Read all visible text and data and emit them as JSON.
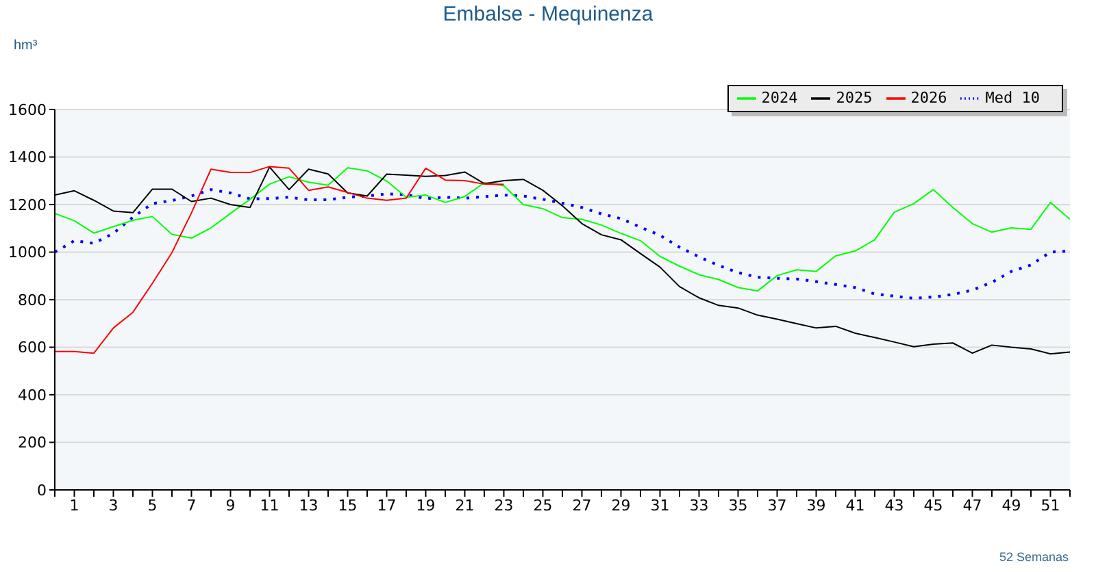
{
  "chart_data": {
    "type": "line",
    "title": "Embalse - Mequinenza",
    "ylabel": "hm³",
    "xlabel": "52 Semanas",
    "x": [
      0,
      1,
      2,
      3,
      4,
      5,
      6,
      7,
      8,
      9,
      10,
      11,
      12,
      13,
      14,
      15,
      16,
      17,
      18,
      19,
      20,
      21,
      22,
      23,
      24,
      25,
      26,
      27,
      28,
      29,
      30,
      31,
      32,
      33,
      34,
      35,
      36,
      37,
      38,
      39,
      40,
      41,
      42,
      43,
      44,
      45,
      46,
      47,
      48,
      49,
      50,
      51,
      52
    ],
    "xlim": [
      0,
      52
    ],
    "xticks": [
      {
        "value": 0,
        "label": null
      },
      1,
      {
        "value": 2,
        "label": null
      },
      3,
      {
        "value": 4,
        "label": null
      },
      5,
      {
        "value": 6,
        "label": null
      },
      7,
      {
        "value": 8,
        "label": null
      },
      9,
      {
        "value": 10,
        "label": null
      },
      11,
      {
        "value": 12,
        "label": null
      },
      13,
      {
        "value": 14,
        "label": null
      },
      15,
      {
        "value": 16,
        "label": null
      },
      17,
      {
        "value": 18,
        "label": null
      },
      19,
      {
        "value": 20,
        "label": null
      },
      21,
      {
        "value": 22,
        "label": null
      },
      23,
      {
        "value": 24,
        "label": null
      },
      25,
      {
        "value": 26,
        "label": null
      },
      27,
      {
        "value": 28,
        "label": null
      },
      29,
      {
        "value": 30,
        "label": null
      },
      31,
      {
        "value": 32,
        "label": null
      },
      33,
      {
        "value": 34,
        "label": null
      },
      35,
      {
        "value": 36,
        "label": null
      },
      37,
      {
        "value": 38,
        "label": null
      },
      39,
      {
        "value": 40,
        "label": null
      },
      41,
      {
        "value": 42,
        "label": null
      },
      43,
      {
        "value": 44,
        "label": null
      },
      45,
      {
        "value": 46,
        "label": null
      },
      47,
      {
        "value": 48,
        "label": null
      },
      49,
      {
        "value": 50,
        "label": null
      },
      51,
      {
        "value": 52,
        "label": null
      }
    ],
    "ylim": [
      0,
      1600
    ],
    "yticks": [
      0,
      200,
      400,
      600,
      800,
      1000,
      1200,
      1400,
      1600
    ],
    "grid": "y",
    "legend": "top right",
    "marker": "none",
    "series": [
      {
        "name": "Med 10",
        "color": "#0000ff",
        "line_style": "dotted",
        "values": [
          1000,
          1048,
          1037,
          1079,
          1147,
          1204,
          1217,
          1236,
          1263,
          1249,
          1224,
          1225,
          1231,
          1220,
          1220,
          1231,
          1236,
          1245,
          1242,
          1225,
          1231,
          1227,
          1233,
          1240,
          1236,
          1222,
          1206,
          1188,
          1161,
          1141,
          1105,
          1071,
          1021,
          980,
          944,
          914,
          894,
          890,
          887,
          876,
          864,
          851,
          824,
          815,
          806,
          811,
          822,
          840,
          873,
          919,
          946,
          1000,
          1005
        ]
      },
      {
        "name": "2024",
        "color": "#00ff00",
        "line_style": "solid",
        "values": [
          1163,
          1132,
          1080,
          1107,
          1134,
          1150,
          1075,
          1059,
          1102,
          1163,
          1222,
          1286,
          1317,
          1294,
          1281,
          1355,
          1342,
          1299,
          1231,
          1240,
          1209,
          1234,
          1292,
          1279,
          1200,
          1183,
          1145,
          1138,
          1114,
          1079,
          1048,
          982,
          941,
          905,
          885,
          851,
          837,
          901,
          926,
          919,
          984,
          1005,
          1052,
          1168,
          1204,
          1263,
          1188,
          1120,
          1084,
          1102,
          1096,
          1209,
          1138
        ]
      },
      {
        "name": "2025",
        "color": "#000000",
        "line_style": "solid",
        "values": [
          1240,
          1258,
          1218,
          1173,
          1166,
          1265,
          1265,
          1213,
          1227,
          1200,
          1188,
          1358,
          1263,
          1349,
          1329,
          1249,
          1236,
          1328,
          1324,
          1319,
          1322,
          1337,
          1288,
          1301,
          1306,
          1260,
          1195,
          1120,
          1073,
          1052,
          994,
          937,
          855,
          808,
          776,
          765,
          735,
          718,
          699,
          681,
          688,
          659,
          641,
          622,
          602,
          613,
          618,
          575,
          609,
          600,
          593,
          572,
          580
        ]
      },
      {
        "name": "2026",
        "color": "#ff0000",
        "line_style": "solid",
        "values": [
          582,
          582,
          575,
          681,
          747,
          869,
          998,
          1165,
          1349,
          1335,
          1335,
          1360,
          1353,
          1260,
          1274,
          1251,
          1227,
          1218,
          1227,
          1353,
          1303,
          1301,
          1286,
          1285,
          null,
          null,
          null,
          null,
          null,
          null,
          null,
          null,
          null,
          null,
          null,
          null,
          null,
          null,
          null,
          null,
          null,
          null,
          null,
          null,
          null,
          null,
          null,
          null,
          null,
          null,
          null,
          null,
          null
        ]
      }
    ]
  }
}
